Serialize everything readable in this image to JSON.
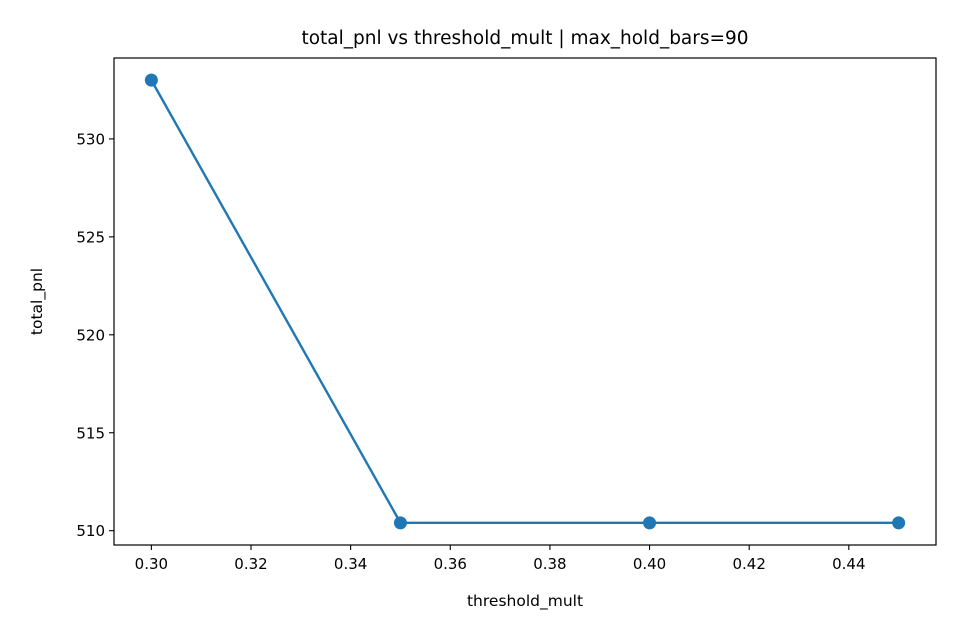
{
  "chart_data": {
    "type": "line",
    "title": "total_pnl vs threshold_mult | max_hold_bars=90",
    "xlabel": "threshold_mult",
    "ylabel": "total_pnl",
    "x": [
      0.3,
      0.35,
      0.4,
      0.45
    ],
    "series": [
      {
        "name": "total_pnl",
        "values": [
          533.0,
          510.4,
          510.4,
          510.4
        ],
        "color": "#1f77b4"
      }
    ],
    "xlim": [
      0.2925,
      0.4575
    ],
    "ylim": [
      509.27,
      534.13
    ],
    "xticks": [
      0.3,
      0.32,
      0.34,
      0.36,
      0.38,
      0.4,
      0.42,
      0.44
    ],
    "xtick_labels": [
      "0.30",
      "0.32",
      "0.34",
      "0.36",
      "0.38",
      "0.40",
      "0.42",
      "0.44"
    ],
    "yticks": [
      510,
      515,
      520,
      525,
      530
    ],
    "ytick_labels": [
      "510",
      "515",
      "520",
      "525",
      "530"
    ],
    "grid": false,
    "legend": "none",
    "marker": "circle"
  }
}
